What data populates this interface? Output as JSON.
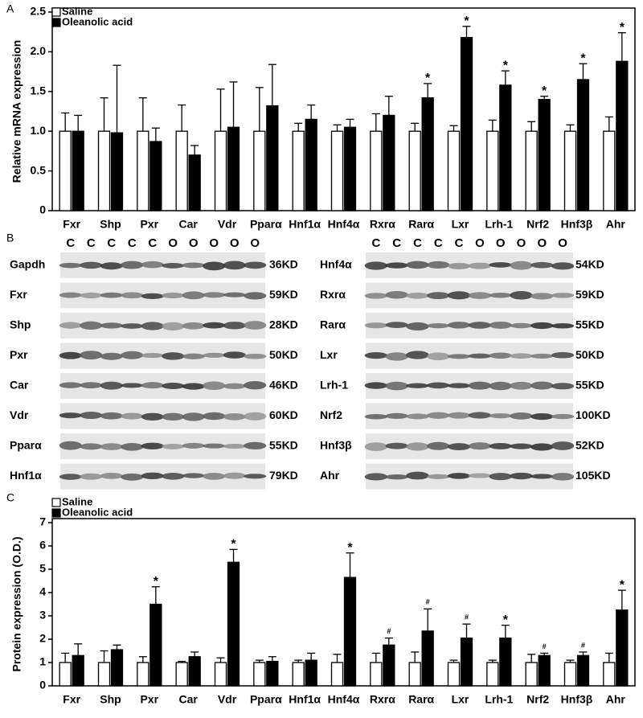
{
  "chart_data": [
    {
      "type": "bar",
      "panel": "A",
      "ylabel": "Relative mRNA expression",
      "categories": [
        "Fxr",
        "Shp",
        "Pxr",
        "Car",
        "Vdr",
        "Pparα",
        "Hnf1α",
        "Hnf4α",
        "Rxrα",
        "Rarα",
        "Lxr",
        "Lrh-1",
        "Nrf2",
        "Hnf3β",
        "Ahr"
      ],
      "series": [
        {
          "name": "Saline",
          "color": "#ffffff",
          "values": [
            1,
            1,
            1,
            1,
            1,
            1,
            1,
            1,
            1,
            1,
            1,
            1,
            1,
            1,
            1
          ],
          "errors": [
            0.23,
            0.42,
            0.42,
            0.33,
            0.53,
            0.55,
            0.1,
            0.08,
            0.22,
            0.1,
            0.07,
            0.14,
            0.12,
            0.08,
            0.18
          ]
        },
        {
          "name": "Oleanolic acid",
          "color": "#000000",
          "values": [
            1.0,
            0.98,
            0.87,
            0.7,
            1.05,
            1.32,
            1.15,
            1.05,
            1.2,
            1.42,
            2.18,
            1.58,
            1.4,
            1.65,
            1.88
          ],
          "errors": [
            0.2,
            0.85,
            0.17,
            0.12,
            0.57,
            0.52,
            0.18,
            0.1,
            0.24,
            0.18,
            0.14,
            0.18,
            0.04,
            0.2,
            0.36
          ]
        }
      ],
      "annotations": [
        null,
        null,
        null,
        null,
        null,
        null,
        null,
        null,
        null,
        "*",
        "*",
        "*",
        "*",
        "*",
        "*"
      ],
      "ylim": [
        0,
        2.5
      ],
      "yticks": [
        0,
        0.5,
        {
          "value": 1,
          "label": "1.0"
        },
        1.5,
        {
          "value": 2,
          "label": "2.0"
        },
        2.5
      ]
    },
    {
      "type": "bar",
      "panel": "C",
      "ylabel": "Protein expression (O.D.)",
      "categories": [
        "Fxr",
        "Shp",
        "Pxr",
        "Car",
        "Vdr",
        "Pparα",
        "Hnf1α",
        "Hnf4α",
        "Rxrα",
        "Rarα",
        "Lxr",
        "Lrh-1",
        "Nrf2",
        "Hnf3β",
        "Ahr"
      ],
      "series": [
        {
          "name": "Saline",
          "color": "#ffffff",
          "values": [
            1,
            1,
            1,
            1,
            1,
            1,
            1,
            1,
            1,
            1,
            1,
            1,
            1,
            1,
            1
          ],
          "errors": [
            0.4,
            0.5,
            0.25,
            0.05,
            0.2,
            0.1,
            0.1,
            0.35,
            0.4,
            0.45,
            0.1,
            0.1,
            0.35,
            0.1,
            0.4
          ]
        },
        {
          "name": "Oleanolic acid",
          "color": "#000000",
          "values": [
            1.3,
            1.55,
            3.5,
            1.25,
            5.3,
            1.05,
            1.1,
            4.65,
            1.75,
            2.35,
            2.05,
            2.05,
            1.3,
            1.3,
            3.25
          ],
          "errors": [
            0.5,
            0.2,
            0.75,
            0.2,
            0.55,
            0.2,
            0.3,
            1.05,
            0.3,
            0.95,
            0.6,
            0.55,
            0.1,
            0.15,
            0.85
          ]
        }
      ],
      "annotations": [
        null,
        null,
        "*",
        null,
        "*",
        null,
        null,
        "*",
        "#",
        "#",
        "#",
        "*",
        "#",
        "#",
        "*"
      ],
      "ylim": [
        0,
        7
      ],
      "yticks": [
        0,
        1,
        2,
        3,
        4,
        5,
        6,
        7
      ]
    }
  ],
  "blots": {
    "panel": "B",
    "lanes": [
      "C",
      "C",
      "C",
      "C",
      "C",
      "O",
      "O",
      "O",
      "O",
      "O"
    ],
    "left": [
      {
        "name": "Gapdh",
        "size": "36KD"
      },
      {
        "name": "Fxr",
        "size": "59KD"
      },
      {
        "name": "Shp",
        "size": "28KD"
      },
      {
        "name": "Pxr",
        "size": "50KD"
      },
      {
        "name": "Car",
        "size": "46KD"
      },
      {
        "name": "Vdr",
        "size": "60KD"
      },
      {
        "name": "Pparα",
        "size": "55KD"
      },
      {
        "name": "Hnf1α",
        "size": "79KD"
      }
    ],
    "right": [
      {
        "name": "Hnf4α",
        "size": "54KD"
      },
      {
        "name": "Rxrα",
        "size": "59KD"
      },
      {
        "name": "Rarα",
        "size": "55KD"
      },
      {
        "name": "Lxr",
        "size": "50KD"
      },
      {
        "name": "Lrh-1",
        "size": "55KD"
      },
      {
        "name": "Nrf2",
        "size": "100KD"
      },
      {
        "name": "Hnf3β",
        "size": "52KD"
      },
      {
        "name": "Ahr",
        "size": "105KD"
      }
    ]
  }
}
